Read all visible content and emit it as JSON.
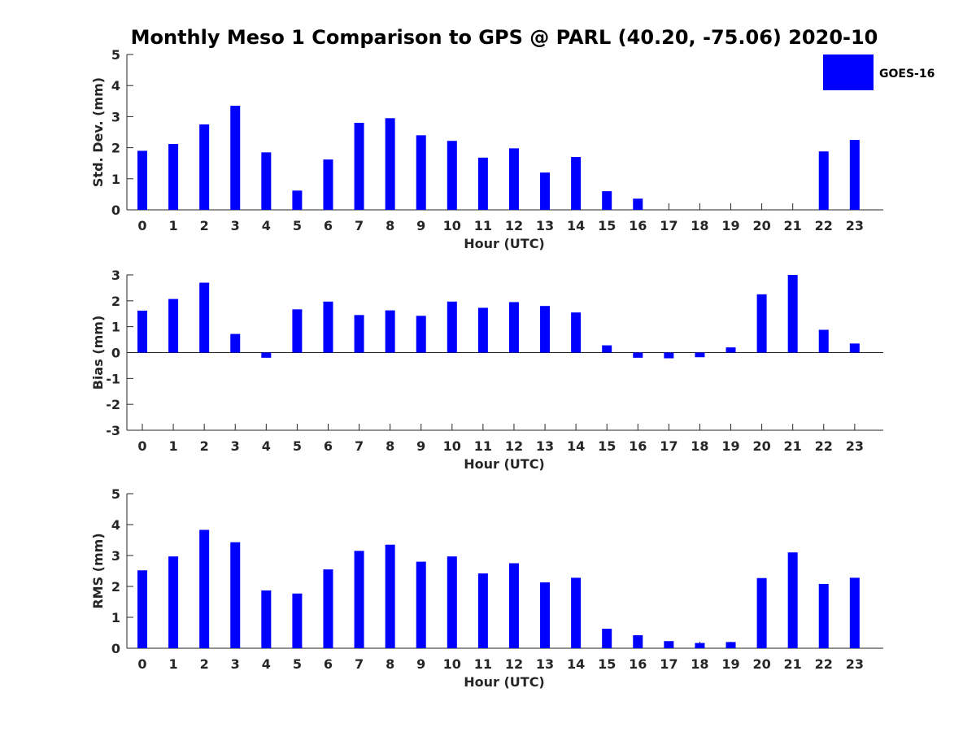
{
  "title": "Monthly Meso 1 Comparison to GPS @ PARL (40.20, -75.06) 2020-10",
  "legend": {
    "label": "GOES-16",
    "color": "#0000ff",
    "placement": "top-right"
  },
  "chart_data": [
    {
      "type": "bar",
      "name": "std-dev",
      "categories": [
        "0",
        "1",
        "2",
        "3",
        "4",
        "5",
        "6",
        "7",
        "8",
        "9",
        "10",
        "11",
        "12",
        "13",
        "14",
        "15",
        "16",
        "17",
        "18",
        "19",
        "20",
        "21",
        "22",
        "23"
      ],
      "values": [
        1.9,
        2.12,
        2.75,
        3.35,
        1.85,
        0.62,
        1.62,
        2.8,
        2.95,
        2.4,
        2.22,
        1.68,
        1.98,
        1.2,
        1.7,
        0.6,
        0.36,
        0,
        0,
        0,
        0,
        0,
        1.88,
        2.25
      ],
      "xlabel": "Hour (UTC)",
      "ylabel": "Std. Dev. (mm)",
      "ylim": [
        0,
        5
      ],
      "yticks": [
        "0",
        "1",
        "2",
        "3",
        "4",
        "5"
      ],
      "color": "#0000ff"
    },
    {
      "type": "bar",
      "name": "bias",
      "categories": [
        "0",
        "1",
        "2",
        "3",
        "4",
        "5",
        "6",
        "7",
        "8",
        "9",
        "10",
        "11",
        "12",
        "13",
        "14",
        "15",
        "16",
        "17",
        "18",
        "19",
        "20",
        "21",
        "22",
        "23"
      ],
      "values": [
        1.62,
        2.07,
        2.7,
        0.72,
        -0.2,
        1.67,
        1.97,
        1.45,
        1.63,
        1.42,
        1.97,
        1.73,
        1.95,
        1.8,
        1.55,
        0.28,
        -0.2,
        -0.22,
        -0.18,
        0.2,
        2.25,
        3.0,
        0.88,
        0.35
      ],
      "xlabel": "Hour (UTC)",
      "ylabel": "Bias (mm)",
      "ylim": [
        -3,
        3
      ],
      "yticks": [
        "-3",
        "-2",
        "-1",
        "0",
        "1",
        "2",
        "3"
      ],
      "color": "#0000ff"
    },
    {
      "type": "bar",
      "name": "rms",
      "categories": [
        "0",
        "1",
        "2",
        "3",
        "4",
        "5",
        "6",
        "7",
        "8",
        "9",
        "10",
        "11",
        "12",
        "13",
        "14",
        "15",
        "16",
        "17",
        "18",
        "19",
        "20",
        "21",
        "22",
        "23"
      ],
      "values": [
        2.52,
        2.97,
        3.83,
        3.43,
        1.87,
        1.77,
        2.55,
        3.15,
        3.35,
        2.8,
        2.97,
        2.42,
        2.75,
        2.13,
        2.28,
        0.63,
        0.42,
        0.23,
        0.17,
        0.2,
        2.27,
        3.1,
        2.08,
        2.28
      ],
      "xlabel": "Hour (UTC)",
      "ylabel": "RMS (mm)",
      "ylim": [
        0,
        5
      ],
      "yticks": [
        "0",
        "1",
        "2",
        "3",
        "4",
        "5"
      ],
      "color": "#0000ff"
    }
  ]
}
